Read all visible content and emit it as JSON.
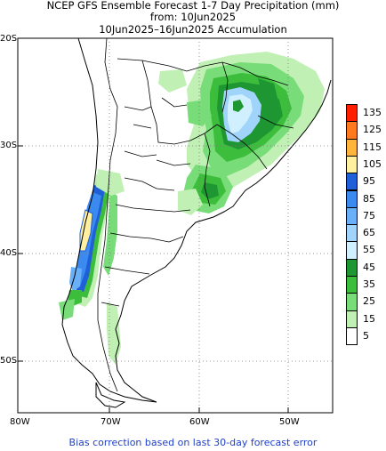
{
  "header": {
    "title": "NCEP GFS Ensemble Forecast 1-7 Day Precipitation (mm)",
    "from": "from: 10Jun2025",
    "range": "10Jun2025–16Jun2025 Accumulation"
  },
  "axes": {
    "lat_labels": [
      "20S",
      "30S",
      "40S",
      "50S"
    ],
    "lon_labels": [
      "80W",
      "70W",
      "60W",
      "50W"
    ]
  },
  "legend": {
    "labels": [
      "135",
      "125",
      "115",
      "105",
      "95",
      "85",
      "75",
      "65",
      "55",
      "45",
      "35",
      "25",
      "15",
      "5"
    ],
    "colors": [
      "#ff1e00",
      "#ff7a1e",
      "#ffb43c",
      "#fff0a0",
      "#1f5fd8",
      "#3a8af0",
      "#6ab0f8",
      "#a0d4fa",
      "#d0f0ff",
      "#1e9632",
      "#3cbe3c",
      "#78dc78",
      "#c0f0b4",
      "#ffffff"
    ]
  },
  "footer": "Bias correction based on last 30-day forecast error"
}
